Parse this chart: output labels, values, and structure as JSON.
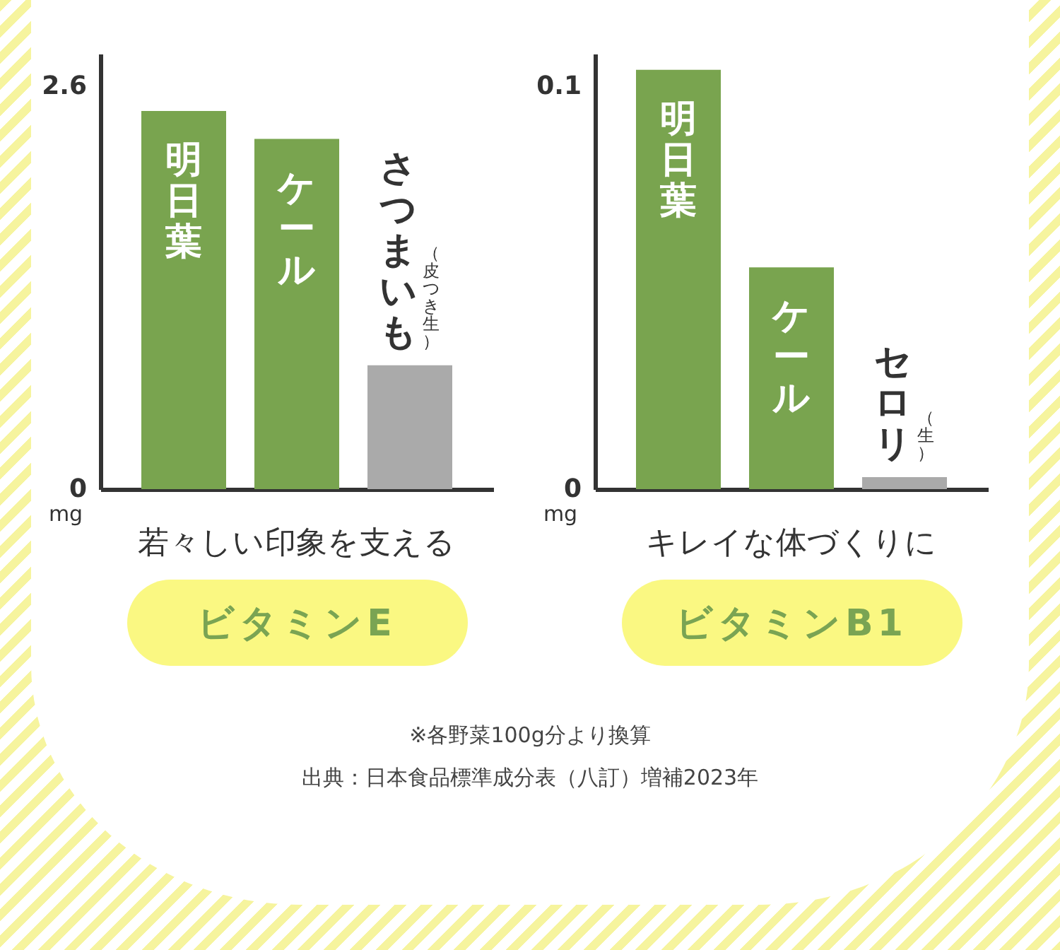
{
  "chart_data": [
    {
      "type": "bar",
      "title": "ビタミンE",
      "subtitle": "若々しい印象を支える",
      "ylabel": "mg",
      "categories": [
        "明日葉",
        "ケール",
        "さつまいも（皮つき生）"
      ],
      "values": [
        2.44,
        2.26,
        0.8
      ],
      "colors": [
        "#79a44f",
        "#79a44f",
        "#aaaaaa"
      ],
      "ylim": [
        0,
        2.81
      ],
      "yticks": [
        0,
        2.6
      ]
    },
    {
      "type": "bar",
      "title": "ビタミンB1",
      "subtitle": "キレイな体づくりに",
      "ylabel": "mg",
      "categories": [
        "明日葉",
        "ケール",
        "セロリ（生）"
      ],
      "values": [
        0.104,
        0.055,
        0.003
      ],
      "colors": [
        "#79a44f",
        "#79a44f",
        "#aaaaaa"
      ],
      "ylim": [
        0,
        0.108
      ],
      "yticks": [
        0,
        0.1
      ]
    },
    {
      "type": "other",
      "annotations": [
        "※各野菜100g分より換算",
        "出典：日本食品標準成分表（八訂）増補2023年"
      ]
    }
  ]
}
